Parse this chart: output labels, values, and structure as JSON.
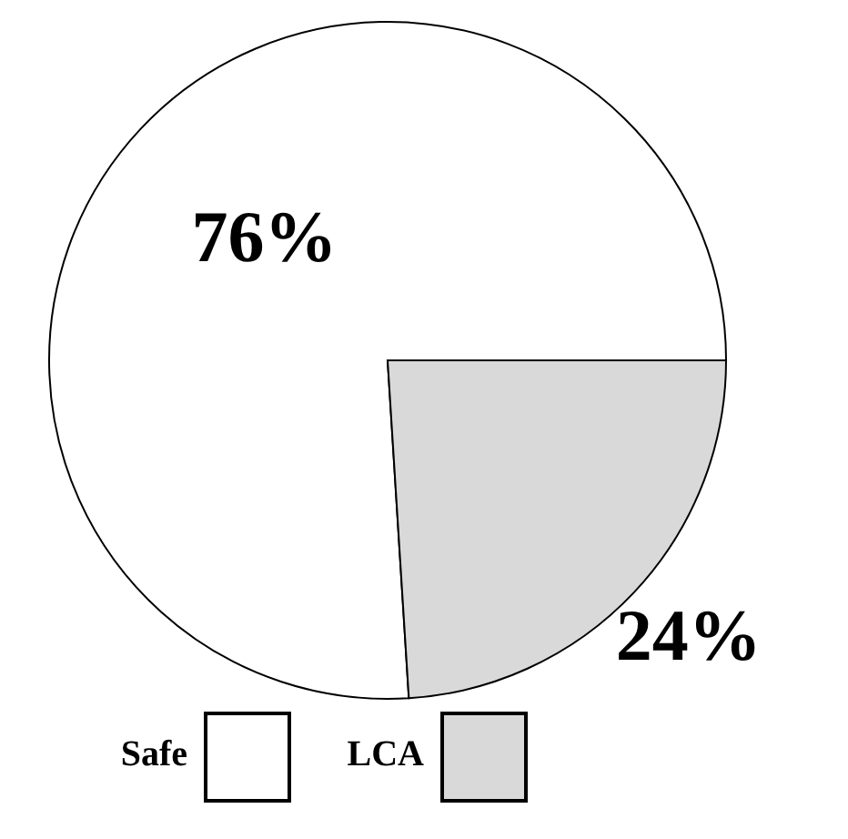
{
  "chart_data": {
    "type": "pie",
    "categories": [
      "Safe",
      "LCA"
    ],
    "values": [
      76,
      24
    ],
    "colors": [
      "#ffffff",
      "#d9d9d9"
    ],
    "value_labels": [
      "76%",
      "24%"
    ],
    "legend": "bottom"
  }
}
